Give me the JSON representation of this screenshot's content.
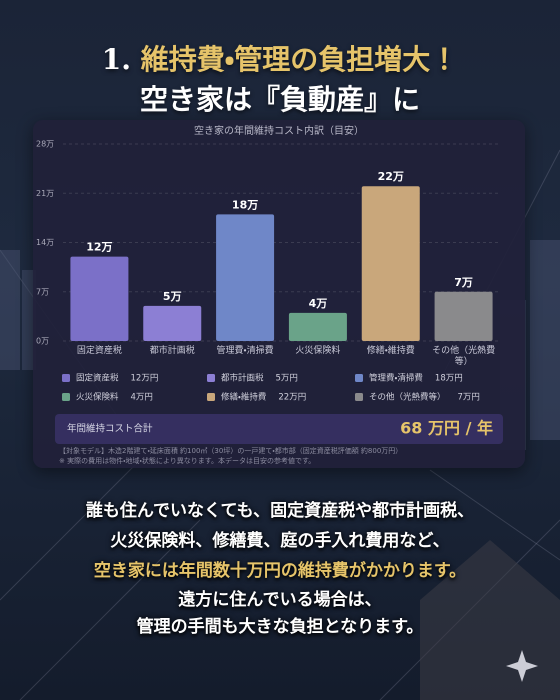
{
  "header": {
    "number": "1.",
    "title_highlight": "維持費・管理の負担増大！",
    "title_line2": "空き家は『負動産』に"
  },
  "chart_data": {
    "type": "bar",
    "title": "空き家の年間維持コスト内訳（目安）",
    "categories": [
      "固定資産税",
      "都市計画税",
      "管理費・清掃費",
      "火災保険料",
      "修繕・維持費",
      "その他（光熱費等）"
    ],
    "values": [
      12,
      5,
      18,
      4,
      22,
      7
    ],
    "value_labels": [
      "12万",
      "5万",
      "18万",
      "4万",
      "22万",
      "7万"
    ],
    "legend_value_labels": [
      "12万円",
      "5万円",
      "18万円",
      "4万円",
      "22万円",
      "7万円"
    ],
    "colors": [
      "#7b70c8",
      "#8c7fd4",
      "#6f87c8",
      "#6aa389",
      "#c9a77b",
      "#8a8a8c"
    ],
    "ylim": [
      0,
      28
    ],
    "yticks": [
      {
        "value": 0,
        "label": "0万"
      },
      {
        "value": 7,
        "label": "7万"
      },
      {
        "value": 14,
        "label": "14万"
      },
      {
        "value": 21,
        "label": "21万"
      },
      {
        "value": 28,
        "label": "28万"
      }
    ],
    "grid": true,
    "total_label": "年間維持コスト合計",
    "total_value_label": "68 万円 / 年",
    "note1": "【対象モデル】木造2階建て・延床面積 約100㎡（30坪）の一戸建て・都市部（固定資産税評価額 約800万円）",
    "note2": "※ 実際の費用は物件・地域・状態により異なります。本データは目安の参考値です。"
  },
  "body": {
    "lines": [
      "誰も住んでいなくても、固定資産税や都市計画税、",
      "火災保険料、修繕費、庭の手入れ費用など、",
      "空き家には年間数十万円の維持費がかかります。",
      "遠方に住んでいる場合は、",
      "管理の手間も大きな負担となります。"
    ]
  }
}
